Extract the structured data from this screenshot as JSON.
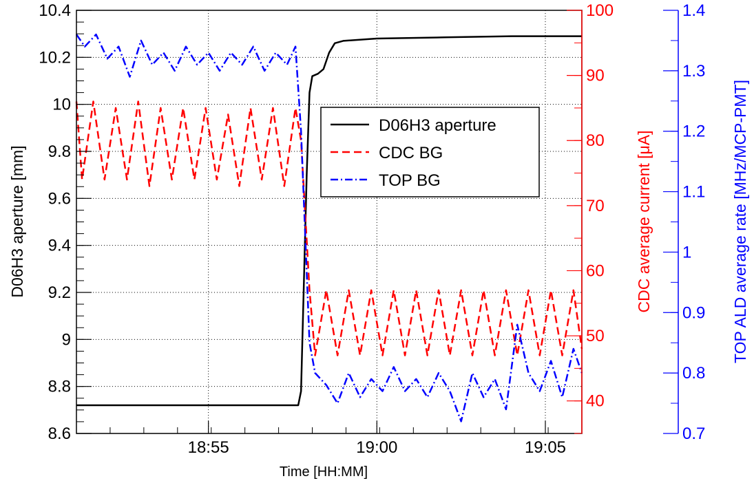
{
  "chart_data": {
    "type": "line",
    "xlabel": "Time [HH:MM]",
    "x_ticks": [
      "18:55",
      "19:00",
      "19:05"
    ],
    "x_range": [
      "18:51:05",
      "19:06:05"
    ],
    "y_axes": {
      "left": {
        "label": "D06H3 aperture [mm]",
        "range": [
          8.6,
          10.4
        ],
        "ticks": [
          "8.6",
          "8.8",
          "9",
          "9.2",
          "9.4",
          "9.6",
          "9.8",
          "10",
          "10.2",
          "10.4"
        ],
        "color": "#000000"
      },
      "right1": {
        "label": "CDC average current [μA]",
        "range": [
          35,
          100
        ],
        "ticks": [
          "40",
          "50",
          "60",
          "70",
          "80",
          "90",
          "100"
        ],
        "color": "#ff0000"
      },
      "right2": {
        "label": "TOP ALD average rate [MHz/MCP-PMT]",
        "range": [
          0.7,
          1.4
        ],
        "ticks": [
          "0.7",
          "0.8",
          "0.9",
          "1",
          "1.1",
          "1.2",
          "1.3",
          "1.4"
        ],
        "color": "#0000ff"
      }
    },
    "grid": true,
    "legend_position": "center",
    "series": [
      {
        "name": "D06H3 aperture",
        "axis": "left",
        "color": "#000000",
        "style": "solid",
        "x": [
          "18:51:05",
          "18:57:40",
          "18:57:45",
          "18:57:55",
          "18:58:00",
          "18:58:05",
          "18:58:15",
          "18:58:25",
          "18:58:35",
          "18:58:45",
          "18:59:00",
          "19:00:00",
          "19:02:00",
          "19:04:00",
          "19:06:05"
        ],
        "y": [
          8.72,
          8.72,
          8.78,
          9.7,
          10.05,
          10.12,
          10.13,
          10.15,
          10.22,
          10.26,
          10.27,
          10.28,
          10.285,
          10.29,
          10.29
        ]
      },
      {
        "name": "CDC BG",
        "axis": "right1",
        "color": "#ff0000",
        "style": "dashed",
        "x": [
          "18:51:05",
          "18:51:15",
          "18:51:35",
          "18:51:55",
          "18:52:15",
          "18:52:35",
          "18:52:55",
          "18:53:15",
          "18:53:35",
          "18:53:55",
          "18:54:15",
          "18:54:35",
          "18:54:55",
          "18:55:15",
          "18:55:35",
          "18:55:55",
          "18:56:15",
          "18:56:35",
          "18:56:55",
          "18:57:15",
          "18:57:35",
          "18:57:45",
          "18:58:00",
          "18:58:10",
          "18:58:30",
          "18:58:50",
          "18:59:10",
          "18:59:30",
          "18:59:50",
          "19:00:10",
          "19:00:30",
          "19:00:50",
          "19:01:10",
          "19:01:30",
          "19:01:50",
          "19:02:10",
          "19:02:30",
          "19:02:50",
          "19:03:10",
          "19:03:30",
          "19:03:50",
          "19:04:10",
          "19:04:30",
          "19:04:50",
          "19:05:10",
          "19:05:30",
          "19:05:50",
          "19:06:05"
        ],
        "y": [
          86,
          74,
          86,
          74,
          85,
          74,
          86,
          73,
          85,
          74,
          85,
          74,
          85,
          74,
          84,
          73,
          85,
          74,
          85,
          73,
          85,
          80,
          57,
          47,
          57,
          47,
          57,
          47,
          57,
          47,
          57,
          47,
          57,
          47,
          57,
          47,
          57,
          47,
          57,
          47,
          57,
          47,
          57,
          47,
          57,
          47,
          57,
          48
        ]
      },
      {
        "name": "TOP BG",
        "axis": "right2",
        "color": "#0000ff",
        "style": "dash-dot",
        "x": [
          "18:51:05",
          "18:51:20",
          "18:51:40",
          "18:52:00",
          "18:52:20",
          "18:52:40",
          "18:53:00",
          "18:53:20",
          "18:53:40",
          "18:54:00",
          "18:54:20",
          "18:54:40",
          "18:55:00",
          "18:55:20",
          "18:55:40",
          "18:56:00",
          "18:56:20",
          "18:56:40",
          "18:57:00",
          "18:57:20",
          "18:57:35",
          "18:57:45",
          "18:58:00",
          "18:58:10",
          "18:58:30",
          "18:58:50",
          "18:59:10",
          "18:59:30",
          "18:59:50",
          "19:00:10",
          "19:00:30",
          "19:00:50",
          "19:01:10",
          "19:01:30",
          "19:01:50",
          "19:02:10",
          "19:02:30",
          "19:02:50",
          "19:03:10",
          "19:03:30",
          "19:03:50",
          "19:04:10",
          "19:04:30",
          "19:04:50",
          "19:05:10",
          "19:05:30",
          "19:05:50",
          "19:06:05"
        ],
        "y": [
          1.36,
          1.34,
          1.36,
          1.32,
          1.34,
          1.29,
          1.35,
          1.31,
          1.33,
          1.3,
          1.34,
          1.31,
          1.33,
          1.3,
          1.33,
          1.31,
          1.34,
          1.3,
          1.33,
          1.31,
          1.34,
          1.2,
          0.85,
          0.8,
          0.78,
          0.75,
          0.8,
          0.76,
          0.79,
          0.77,
          0.81,
          0.77,
          0.79,
          0.76,
          0.8,
          0.77,
          0.72,
          0.8,
          0.76,
          0.79,
          0.74,
          0.88,
          0.8,
          0.77,
          0.82,
          0.76,
          0.84,
          0.8
        ]
      }
    ]
  }
}
